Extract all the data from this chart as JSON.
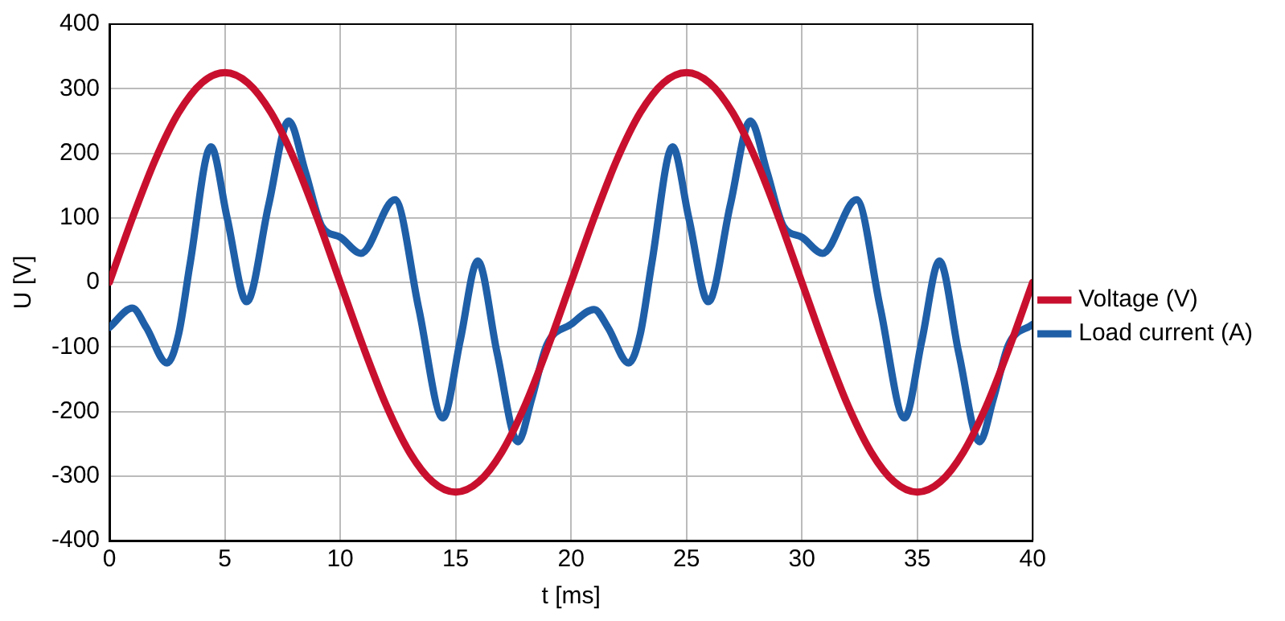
{
  "chart_data": {
    "type": "line",
    "xlabel": "t [ms]",
    "ylabel": "U [V]",
    "xlim": [
      0,
      40
    ],
    "xticks": [
      0,
      5,
      10,
      15,
      20,
      25,
      30,
      35,
      40
    ],
    "ylim": [
      -400,
      400
    ],
    "yticks": [
      -400,
      -300,
      -200,
      -100,
      0,
      100,
      200,
      300,
      400
    ],
    "grid": true,
    "legend": "right",
    "marker": "none",
    "line_style": "solid",
    "series": [
      {
        "name": "Voltage (V)",
        "color": "#c8102e",
        "x": [
          0,
          1,
          2,
          3,
          4,
          5,
          6,
          7,
          8,
          9,
          10,
          11,
          12,
          13,
          14,
          15,
          16,
          17,
          18,
          19,
          20,
          21,
          22,
          23,
          24,
          25,
          26,
          27,
          28,
          29,
          30,
          31,
          32,
          33,
          34,
          35,
          36,
          37,
          38,
          39,
          40
        ],
        "values": [
          0,
          100,
          191,
          263,
          309,
          325,
          309,
          263,
          191,
          100,
          0,
          -100,
          -191,
          -263,
          -309,
          -325,
          -309,
          -263,
          -191,
          -100,
          0,
          100,
          191,
          263,
          309,
          325,
          309,
          263,
          191,
          100,
          0,
          -100,
          -191,
          -263,
          -309,
          -325,
          -309,
          -263,
          -191,
          -100,
          0
        ]
      },
      {
        "name": "Load current (A)",
        "color": "#1f5fa8",
        "x": [
          0,
          1,
          1.6,
          2.5,
          3,
          3.5,
          4.4,
          5.1,
          5.95,
          6.9,
          7.77,
          8.5,
          9.2,
          10,
          10.9,
          12.37,
          13.4,
          14.45,
          15.2,
          15.96,
          16.8,
          17.7,
          18.3,
          18.95,
          20,
          21,
          21.6,
          22.5,
          23,
          23.5,
          24.4,
          25.1,
          25.95,
          26.9,
          27.77,
          28.5,
          29.2,
          30,
          30.9,
          32.37,
          33.4,
          34.45,
          35.2,
          35.96,
          36.8,
          37.7,
          38.3,
          38.95,
          40
        ],
        "values": [
          -70,
          -40,
          -70,
          -125,
          -80,
          30,
          210,
          100,
          -30,
          120,
          250,
          170,
          87,
          70,
          45,
          128,
          -40,
          -210,
          -90,
          33,
          -110,
          -247,
          -180,
          -97,
          -65,
          -42,
          -70,
          -125,
          -80,
          30,
          210,
          100,
          -30,
          120,
          250,
          170,
          87,
          70,
          45,
          128,
          -40,
          -210,
          -90,
          33,
          -110,
          -247,
          -180,
          -97,
          -65
        ]
      }
    ]
  }
}
